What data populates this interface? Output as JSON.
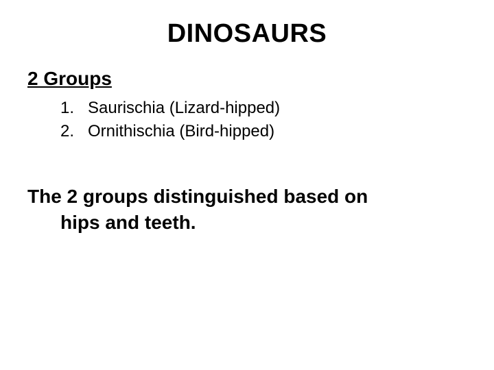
{
  "slide": {
    "title": "DINOSAURS",
    "subtitle": "2 Groups",
    "list": {
      "items": [
        {
          "number": "1.",
          "text": "Saurischia (Lizard-hipped)"
        },
        {
          "number": "2.",
          "text": "Ornithischia (Bird-hipped)"
        }
      ]
    },
    "conclusion_line1": "The 2 groups distinguished based on",
    "conclusion_line2": "hips and teeth."
  },
  "styling": {
    "background_color": "#ffffff",
    "text_color": "#000000",
    "title_fontsize": 38,
    "subtitle_fontsize": 28,
    "list_fontsize": 24,
    "conclusion_fontsize": 28,
    "font_family": "Arial"
  }
}
